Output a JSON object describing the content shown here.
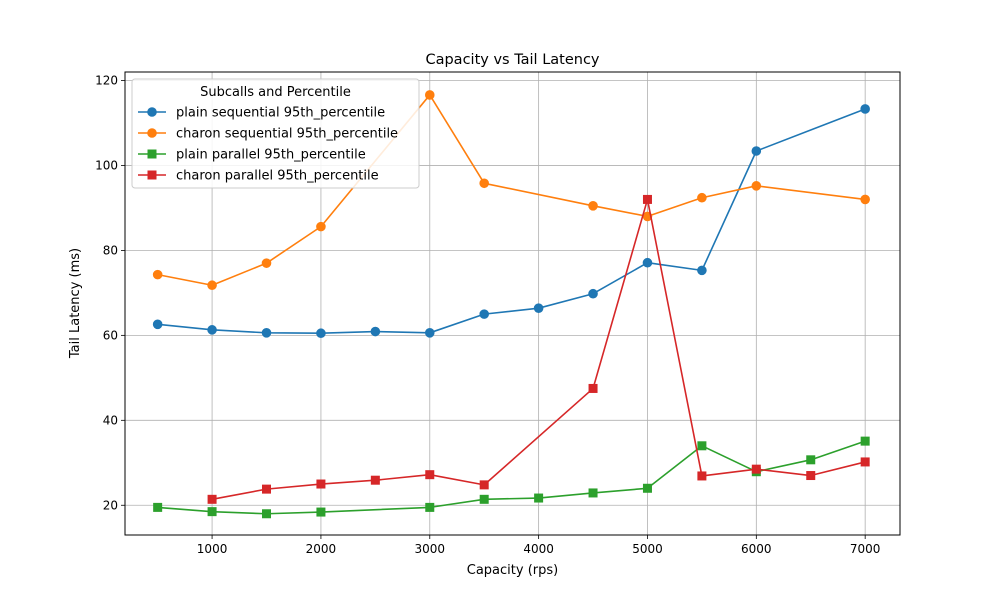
{
  "chart_data": {
    "type": "line",
    "title": "Capacity vs Tail Latency",
    "xlabel": "Capacity (rps)",
    "ylabel": "Tail Latency (ms)",
    "xlim": [
      200,
      7320
    ],
    "ylim": [
      13,
      122
    ],
    "xticks": [
      1000,
      2000,
      3000,
      4000,
      5000,
      6000,
      7000
    ],
    "yticks": [
      20,
      40,
      60,
      80,
      100,
      120
    ],
    "grid": true,
    "legend": {
      "title": "Subcalls and Percentile",
      "position": "upper-left"
    },
    "series": [
      {
        "name": "plain sequential 95th_percentile",
        "color": "#1f77b4",
        "marker": "circle",
        "x": [
          500,
          1000,
          1500,
          2000,
          2500,
          3000,
          3500,
          4000,
          4500,
          5000,
          5500,
          6000,
          7000
        ],
        "y": [
          62.6,
          61.3,
          60.6,
          60.5,
          60.9,
          60.6,
          65.0,
          66.4,
          69.8,
          77.1,
          75.3,
          103.4,
          113.3
        ]
      },
      {
        "name": "charon sequential 95th_percentile",
        "color": "#ff7f0e",
        "marker": "circle",
        "x": [
          500,
          1000,
          1500,
          2000,
          3000,
          3500,
          4500,
          5000,
          5500,
          6000,
          7000
        ],
        "y": [
          74.3,
          71.8,
          77.0,
          85.6,
          116.6,
          95.8,
          90.5,
          88.0,
          92.4,
          95.2,
          92.0
        ]
      },
      {
        "name": "plain parallel 95th_percentile",
        "color": "#2ca02c",
        "marker": "square",
        "x": [
          500,
          1000,
          1500,
          2000,
          3000,
          3500,
          4000,
          4500,
          5000,
          5500,
          6000,
          6500,
          7000
        ],
        "y": [
          19.5,
          18.5,
          18.0,
          18.4,
          19.5,
          21.4,
          21.7,
          22.9,
          24.0,
          34.0,
          27.9,
          30.7,
          35.1
        ]
      },
      {
        "name": "charon parallel 95th_percentile",
        "color": "#d62728",
        "marker": "square",
        "x": [
          1000,
          1500,
          2000,
          2500,
          3000,
          3500,
          4500,
          5000,
          5500,
          6000,
          6500,
          7000
        ],
        "y": [
          21.4,
          23.8,
          25.0,
          25.9,
          27.2,
          24.8,
          47.5,
          92.0,
          26.9,
          28.5,
          27.0,
          30.2
        ]
      }
    ]
  }
}
